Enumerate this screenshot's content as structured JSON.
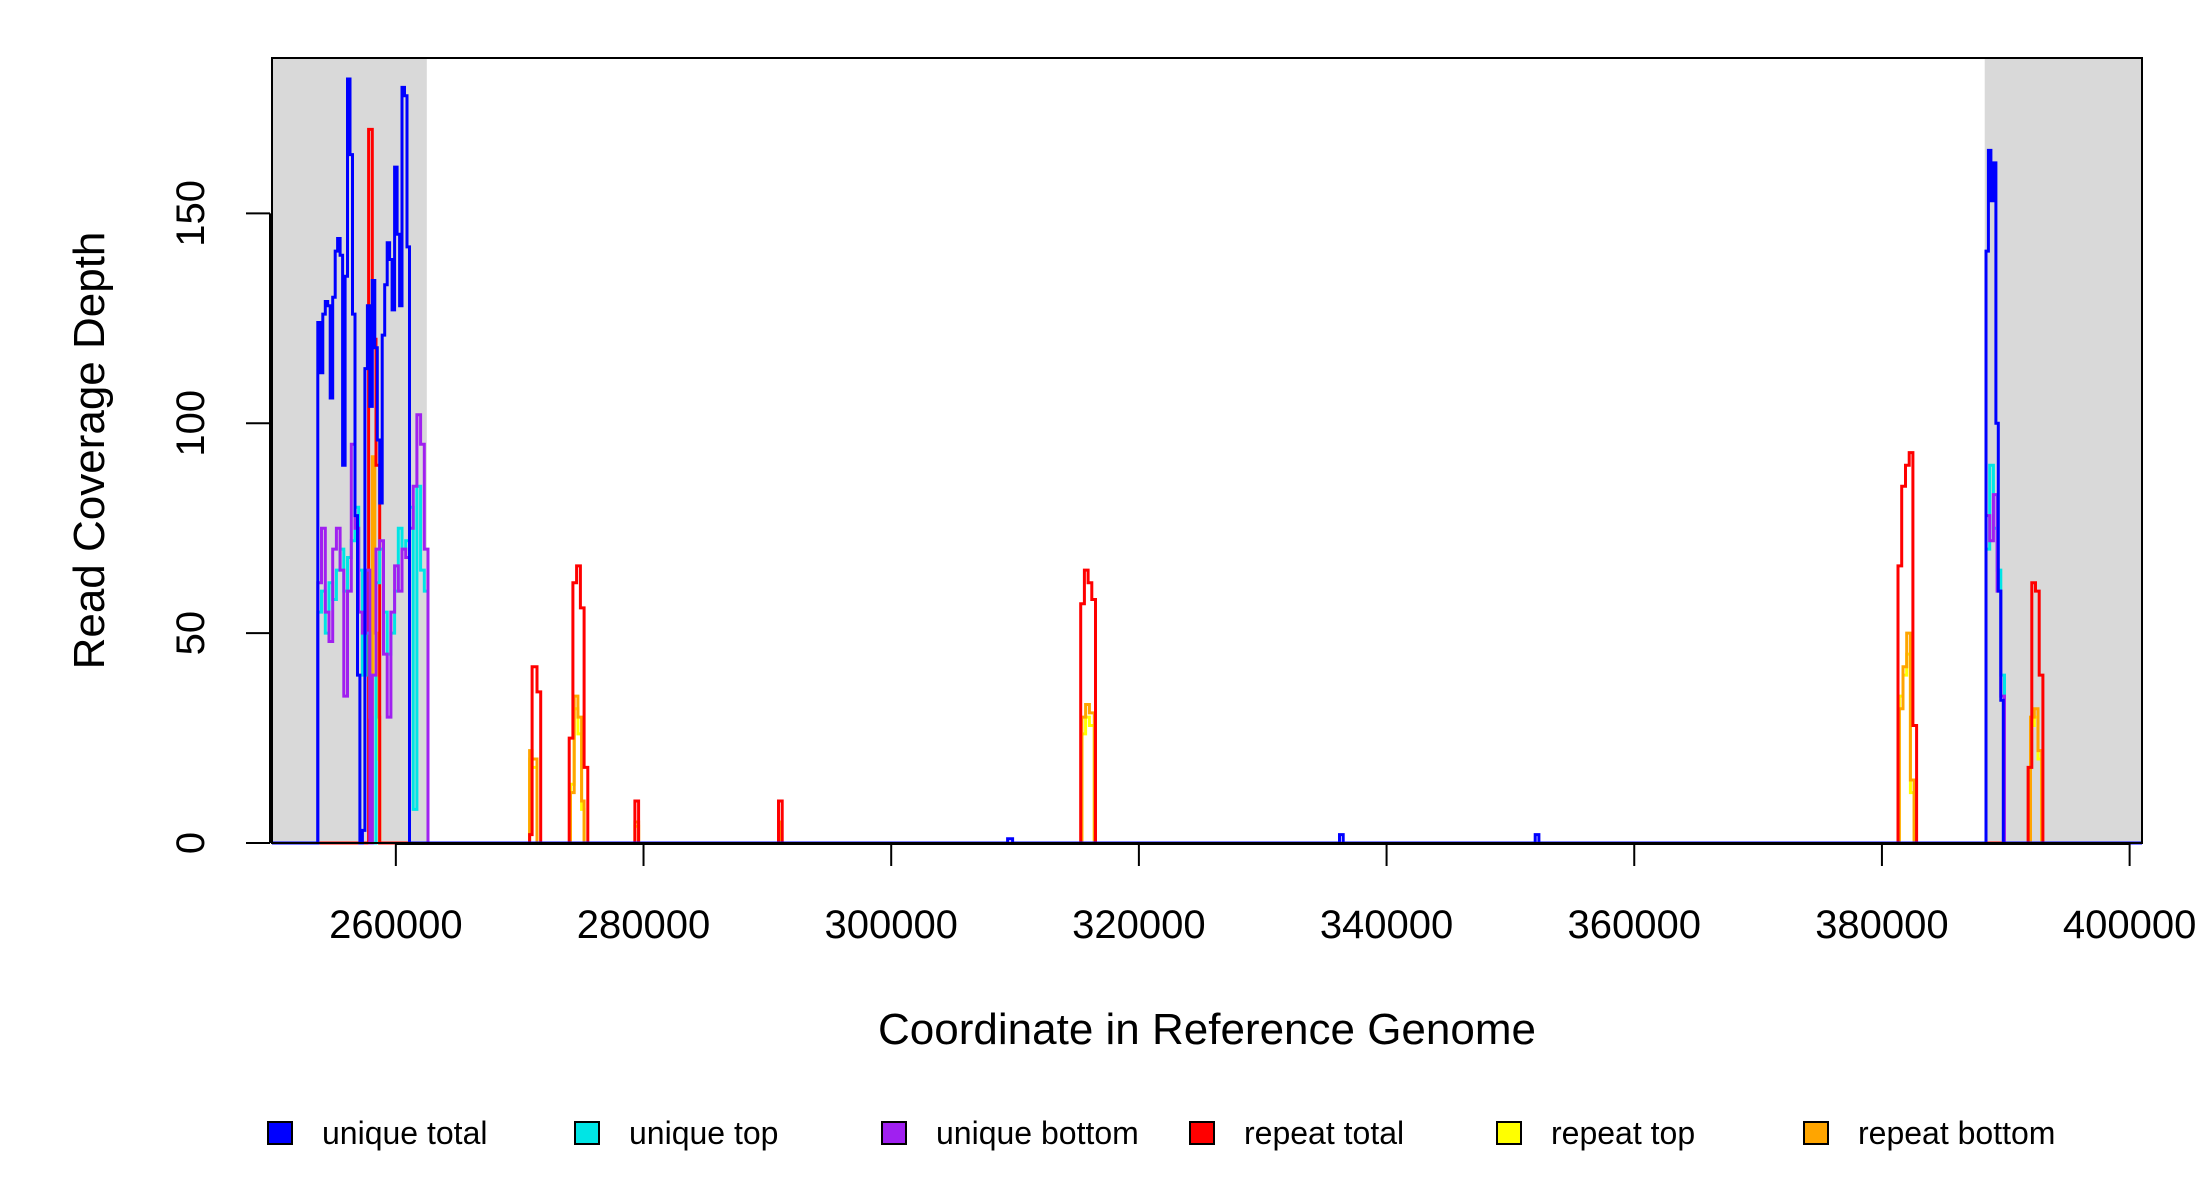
{
  "chart_data": {
    "type": "line",
    "title": "",
    "xlabel": "Coordinate in Reference Genome",
    "ylabel": "Read Coverage Depth",
    "xlim": [
      250000,
      401000
    ],
    "ylim": [
      0,
      187
    ],
    "xticks": [
      260000,
      280000,
      300000,
      320000,
      340000,
      360000,
      380000,
      400000
    ],
    "yticks": [
      0,
      50,
      100,
      150
    ],
    "xtick_labels": [
      "260000",
      "280000",
      "300000",
      "320000",
      "340000",
      "360000",
      "380000",
      "400000"
    ],
    "ytick_labels": [
      "0",
      "50",
      "100",
      "150"
    ],
    "grid": false,
    "shaded_regions": [
      {
        "x": [
          250000,
          262500
        ],
        "color": "#d9d9d9"
      },
      {
        "x": [
          388300,
          401000
        ],
        "color": "#d9d9d9"
      }
    ],
    "legend_position": "bottom",
    "legend": [
      {
        "label": "unique total",
        "color": "#0000ff"
      },
      {
        "label": "unique top",
        "color": "#00e5e5"
      },
      {
        "label": "unique bottom",
        "color": "#a020f0"
      },
      {
        "label": "repeat total",
        "color": "#ff0000"
      },
      {
        "label": "repeat top",
        "color": "#ffff00"
      },
      {
        "label": "repeat bottom",
        "color": "#ffa500"
      }
    ],
    "series": [
      {
        "color": "#ffff00",
        "x": [
          250000,
          258100,
          258100,
          258300,
          258300,
          258500,
          258500,
          258700,
          258700,
          270800,
          270800,
          271000,
          271000,
          271400,
          271400,
          274100,
          274100,
          274400,
          274400,
          274700,
          274700,
          275000,
          275000,
          275200,
          275200,
          279300,
          279300,
          279600,
          279600,
          290900,
          290900,
          291100,
          291100,
          315400,
          315400,
          315700,
          315700,
          316000,
          316000,
          316400,
          316400,
          381400,
          381400,
          381700,
          381700,
          382000,
          382000,
          382300,
          382300,
          382600,
          382600,
          392000,
          392000,
          392300,
          392300,
          392600,
          392600,
          392900,
          392900,
          401000
        ],
        "y": [
          0,
          0,
          60,
          60,
          40,
          40,
          20,
          20,
          0,
          0,
          20,
          20,
          18,
          18,
          0,
          0,
          14,
          14,
          32,
          32,
          26,
          26,
          8,
          8,
          0,
          0,
          4,
          4,
          0,
          0,
          4,
          4,
          0,
          0,
          26,
          26,
          30,
          30,
          28,
          28,
          0,
          0,
          35,
          35,
          40,
          40,
          45,
          45,
          12,
          12,
          0,
          0,
          28,
          28,
          30,
          30,
          20,
          20,
          0,
          0
        ]
      },
      {
        "color": "#ffa500",
        "x": [
          250000,
          258100,
          258100,
          258300,
          258300,
          258500,
          258500,
          258700,
          258700,
          270800,
          270800,
          271000,
          271000,
          271400,
          271400,
          274100,
          274100,
          274400,
          274400,
          274700,
          274700,
          275000,
          275000,
          275200,
          275200,
          279300,
          279300,
          279600,
          279600,
          290900,
          290900,
          291100,
          291100,
          315400,
          315400,
          315700,
          315700,
          316000,
          316000,
          316400,
          316400,
          381400,
          381400,
          381700,
          381700,
          382000,
          382000,
          382300,
          382300,
          382600,
          382600,
          392000,
          392000,
          392300,
          392300,
          392600,
          392600,
          392900,
          392900,
          401000
        ],
        "y": [
          0,
          0,
          92,
          92,
          50,
          50,
          30,
          30,
          0,
          0,
          22,
          22,
          20,
          20,
          0,
          0,
          12,
          12,
          35,
          35,
          30,
          30,
          10,
          10,
          0,
          0,
          5,
          5,
          0,
          0,
          5,
          5,
          0,
          0,
          30,
          30,
          33,
          33,
          31,
          31,
          0,
          0,
          32,
          32,
          42,
          42,
          50,
          50,
          15,
          15,
          0,
          0,
          30,
          30,
          32,
          32,
          22,
          22,
          0,
          0
        ]
      },
      {
        "color": "#ff0000",
        "x": [
          250000,
          257800,
          257800,
          258100,
          258100,
          258400,
          258400,
          258700,
          258700,
          270800,
          270800,
          271000,
          271000,
          271400,
          271400,
          271700,
          271700,
          274000,
          274000,
          274300,
          274300,
          274600,
          274600,
          274900,
          274900,
          275200,
          275200,
          275500,
          275500,
          279300,
          279300,
          279600,
          279600,
          290900,
          290900,
          291200,
          291200,
          315300,
          315300,
          315600,
          315600,
          315900,
          315900,
          316200,
          316200,
          316500,
          316500,
          381300,
          381300,
          381600,
          381600,
          381900,
          381900,
          382200,
          382200,
          382500,
          382500,
          382800,
          382800,
          391800,
          391800,
          392100,
          392100,
          392400,
          392400,
          392700,
          392700,
          393000,
          393000,
          401000
        ],
        "y": [
          0,
          0,
          170,
          170,
          120,
          120,
          90,
          90,
          0,
          0,
          2,
          2,
          42,
          42,
          36,
          36,
          0,
          0,
          25,
          25,
          62,
          62,
          66,
          66,
          56,
          56,
          18,
          18,
          0,
          0,
          10,
          10,
          0,
          0,
          10,
          10,
          0,
          0,
          57,
          57,
          65,
          65,
          62,
          62,
          58,
          58,
          0,
          0,
          66,
          66,
          85,
          85,
          90,
          90,
          93,
          93,
          28,
          28,
          0,
          0,
          18,
          18,
          62,
          62,
          60,
          60,
          40,
          40,
          0,
          0
        ]
      },
      {
        "color": "#00e5e5",
        "x": [
          250000,
          253700,
          253700,
          254000,
          254000,
          254300,
          254300,
          254600,
          254600,
          254900,
          254900,
          255200,
          255200,
          255500,
          255500,
          255800,
          255800,
          256100,
          256100,
          256400,
          256400,
          256700,
          256700,
          257000,
          257000,
          257300,
          257300,
          257600,
          257600,
          257900,
          257900,
          258100,
          258100,
          258400,
          258400,
          258700,
          258700,
          259000,
          259000,
          259300,
          259300,
          259600,
          259600,
          259900,
          259900,
          260200,
          260200,
          260500,
          260500,
          260800,
          260800,
          261100,
          261100,
          261400,
          261400,
          261700,
          261700,
          262000,
          262000,
          262300,
          262300,
          262600,
          262600,
          262900,
          262900,
          263200,
          263200,
          388400,
          388400,
          388700,
          388700,
          389000,
          389000,
          389300,
          389300,
          389600,
          389600,
          389900,
          389900,
          390200,
          390200,
          401000
        ],
        "y": [
          0,
          0,
          55,
          55,
          60,
          60,
          50,
          50,
          62,
          62,
          58,
          58,
          65,
          65,
          70,
          70,
          60,
          60,
          68,
          68,
          72,
          72,
          80,
          80,
          65,
          65,
          40,
          40,
          50,
          50,
          30,
          30,
          0,
          0,
          62,
          62,
          70,
          70,
          55,
          55,
          45,
          45,
          50,
          50,
          60,
          60,
          75,
          75,
          70,
          70,
          72,
          72,
          80,
          80,
          8,
          8,
          85,
          85,
          65,
          65,
          60,
          60,
          0,
          0,
          0,
          0,
          0,
          0,
          70,
          70,
          90,
          90,
          75,
          75,
          65,
          65,
          40,
          40,
          0,
          0,
          0,
          0
        ]
      },
      {
        "color": "#a020f0",
        "x": [
          250000,
          253700,
          253700,
          254000,
          254000,
          254300,
          254300,
          254600,
          254600,
          254900,
          254900,
          255200,
          255200,
          255500,
          255500,
          255800,
          255800,
          256100,
          256100,
          256400,
          256400,
          256700,
          256700,
          257000,
          257000,
          257300,
          257300,
          257600,
          257600,
          257900,
          257900,
          258100,
          258100,
          258400,
          258400,
          258700,
          258700,
          259000,
          259000,
          259300,
          259300,
          259600,
          259600,
          259900,
          259900,
          260200,
          260200,
          260500,
          260500,
          260800,
          260800,
          261100,
          261100,
          261400,
          261400,
          261700,
          261700,
          262000,
          262000,
          262300,
          262300,
          262600,
          262600,
          262900,
          262900,
          263200,
          263200,
          388400,
          388400,
          388700,
          388700,
          389000,
          389000,
          389300,
          389300,
          389600,
          389600,
          389900,
          389900,
          390200,
          390200,
          401000
        ],
        "y": [
          0,
          0,
          62,
          62,
          75,
          75,
          55,
          55,
          48,
          48,
          70,
          70,
          75,
          75,
          65,
          65,
          35,
          35,
          60,
          60,
          95,
          95,
          75,
          75,
          55,
          55,
          50,
          50,
          65,
          65,
          0,
          0,
          40,
          40,
          70,
          70,
          72,
          72,
          45,
          45,
          30,
          30,
          55,
          55,
          66,
          66,
          60,
          60,
          70,
          70,
          68,
          68,
          75,
          75,
          85,
          85,
          102,
          102,
          95,
          95,
          70,
          70,
          0,
          0,
          0,
          0,
          0,
          0,
          78,
          78,
          72,
          72,
          83,
          83,
          60,
          60,
          35,
          35,
          0,
          0,
          0,
          0
        ]
      },
      {
        "color": "#0000ff",
        "x": [
          250000,
          253700,
          253700,
          253900,
          253900,
          254100,
          254100,
          254300,
          254300,
          254500,
          254500,
          254700,
          254700,
          254900,
          254900,
          255100,
          255100,
          255300,
          255300,
          255500,
          255500,
          255700,
          255700,
          255900,
          255900,
          256100,
          256100,
          256300,
          256300,
          256500,
          256500,
          256700,
          256700,
          256900,
          256900,
          257100,
          257100,
          257300,
          257300,
          257500,
          257500,
          257700,
          257700,
          257900,
          257900,
          258100,
          258100,
          258300,
          258300,
          258500,
          258500,
          258700,
          258700,
          258900,
          258900,
          259100,
          259100,
          259300,
          259300,
          259500,
          259500,
          259700,
          259700,
          259900,
          259900,
          260100,
          260100,
          260300,
          260300,
          260500,
          260500,
          260700,
          260700,
          260900,
          260900,
          261100,
          261100,
          261300,
          261300,
          261500,
          261500,
          261700,
          261700,
          261900,
          261900,
          262100,
          262100,
          262300,
          262300,
          262500,
          262500,
          262700,
          262700,
          262900,
          262900,
          263100,
          263100,
          263300,
          263300,
          309400,
          309400,
          309800,
          309800,
          336200,
          336200,
          336500,
          336500,
          352000,
          352000,
          352300,
          352300,
          388400,
          388400,
          388600,
          388600,
          388800,
          388800,
          389000,
          389000,
          389200,
          389200,
          389400,
          389400,
          389600,
          389600,
          389800,
          389800,
          390000,
          390000,
          390200,
          390200,
          401000
        ],
        "y": [
          0,
          0,
          124,
          124,
          112,
          112,
          126,
          126,
          129,
          129,
          128,
          128,
          106,
          106,
          130,
          130,
          141,
          141,
          144,
          144,
          140,
          140,
          90,
          90,
          135,
          135,
          182,
          182,
          164,
          164,
          126,
          126,
          78,
          78,
          40,
          40,
          0,
          0,
          3,
          3,
          113,
          113,
          128,
          128,
          104,
          104,
          134,
          134,
          118,
          118,
          96,
          96,
          81,
          81,
          121,
          121,
          133,
          133,
          143,
          143,
          139,
          139,
          127,
          127,
          161,
          161,
          145,
          145,
          128,
          128,
          180,
          180,
          178,
          178,
          142,
          142,
          0,
          0,
          0,
          0,
          0,
          0,
          0,
          0,
          0,
          0,
          0,
          0,
          0,
          0,
          0,
          0,
          0,
          0,
          0,
          0,
          0,
          0,
          0,
          0,
          1,
          1,
          0,
          0,
          2,
          2,
          0,
          0,
          2,
          2,
          0,
          0,
          141,
          141,
          165,
          165,
          153,
          153,
          162,
          162,
          100,
          100,
          60,
          60,
          34,
          34,
          0,
          0,
          0,
          0,
          0,
          0
        ]
      }
    ]
  }
}
